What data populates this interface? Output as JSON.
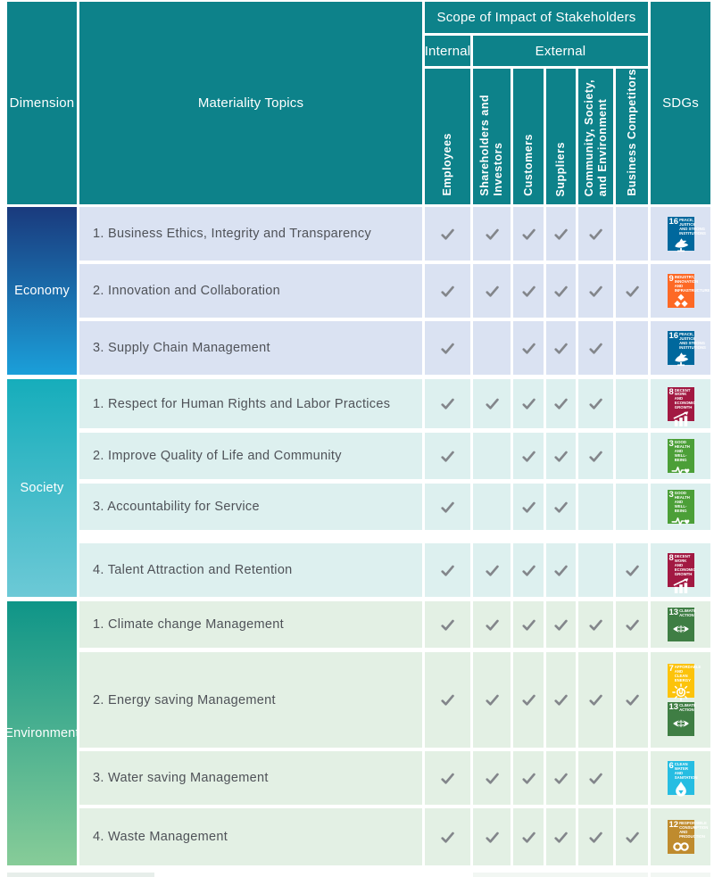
{
  "header": {
    "dimension": "Dimension",
    "materiality_topics": "Materiality Topics",
    "scope_title": "Scope of Impact of Stakeholders",
    "internal": "Internal",
    "external": "External",
    "stakeholders": [
      "Employees",
      "Shareholders and\nInvestors",
      "Customers",
      "Suppliers",
      "Community, Society,\nand Environment",
      "Business Competitors"
    ],
    "sdgs": "SDGs"
  },
  "colors": {
    "header_teal": "#0d828a",
    "check_gray": "#83868b",
    "topic_text": "#4f5258"
  },
  "sdg_catalog": {
    "sdg3": {
      "number": "3",
      "label": "GOOD HEALTH\nAND WELL-BEING",
      "color": "#4C9F38",
      "glyph": "ekg-heart-icon"
    },
    "sdg6": {
      "number": "6",
      "label": "CLEAN WATER\nAND SANITATION",
      "color": "#26BDE2",
      "glyph": "water-drop-icon"
    },
    "sdg7": {
      "number": "7",
      "label": "AFFORDABLE AND\nCLEAN ENERGY",
      "color": "#FCC30B",
      "glyph": "sun-energy-icon"
    },
    "sdg8": {
      "number": "8",
      "label": "DECENT WORK AND\nECONOMIC GROWTH",
      "color": "#A21942",
      "glyph": "growth-chart-icon"
    },
    "sdg9": {
      "number": "9",
      "label": "INDUSTRY, INNOVATION\nAND INFRASTRUCTURE",
      "color": "#FD6925",
      "glyph": "cubes-icon"
    },
    "sdg12": {
      "number": "12",
      "label": "RESPONSIBLE\nCONSUMPTION\nAND PRODUCTION",
      "color": "#BF8B2E",
      "glyph": "infinity-icon"
    },
    "sdg13": {
      "number": "13",
      "label": "CLIMATE\nACTION",
      "color": "#3F7E44",
      "glyph": "eye-globe-icon"
    },
    "sdg16": {
      "number": "16",
      "label": "PEACE, JUSTICE\nAND STRONG\nINSTITUTIONS",
      "color": "#00689D",
      "glyph": "dove-icon"
    }
  },
  "groups": [
    {
      "dimension": "Economy",
      "gradient": [
        "#1a3a7d",
        "#1b9fd9"
      ],
      "row_bg": "#dae2f2",
      "rows": [
        {
          "topic": "1. Business Ethics, Integrity and Transparency",
          "checks": [
            1,
            1,
            1,
            1,
            1,
            0
          ],
          "sdgs": [
            "sdg16"
          ]
        },
        {
          "topic": "2. Innovation and Collaboration",
          "checks": [
            1,
            1,
            1,
            1,
            1,
            1
          ],
          "sdgs": [
            "sdg9"
          ]
        },
        {
          "topic": "3. Supply Chain Management",
          "checks": [
            1,
            0,
            1,
            1,
            1,
            0
          ],
          "sdgs": [
            "sdg16"
          ]
        }
      ]
    },
    {
      "dimension": "Society",
      "gradient": [
        "#16adbb",
        "#6cc9d6"
      ],
      "row_bg": "#ddf0ef",
      "rows": [
        {
          "topic": "1. Respect for Human Rights and Labor Practices",
          "checks": [
            1,
            1,
            1,
            1,
            1,
            0
          ],
          "sdgs": [
            "sdg8"
          ]
        },
        {
          "topic": "2. Improve Quality of Life and Community",
          "checks": [
            1,
            0,
            1,
            1,
            1,
            0
          ],
          "sdgs": [
            "sdg3"
          ]
        },
        {
          "topic": "3. Accountability for Service",
          "checks": [
            1,
            0,
            1,
            1,
            0,
            0
          ],
          "sdgs": [
            "sdg3"
          ]
        },
        {
          "topic": "4. Talent Attraction and Retention",
          "checks": [
            1,
            1,
            1,
            1,
            0,
            1
          ],
          "sdgs": [
            "sdg8"
          ]
        }
      ]
    },
    {
      "dimension": "Environment",
      "gradient": [
        "#0f9588",
        "#87cc98"
      ],
      "row_bg": "#e3f0e4",
      "rows": [
        {
          "topic": "1. Climate change Management",
          "checks": [
            1,
            1,
            1,
            1,
            1,
            1
          ],
          "sdgs": [
            "sdg13"
          ]
        },
        {
          "topic": "2. Energy saving Management",
          "checks": [
            1,
            1,
            1,
            1,
            1,
            1
          ],
          "sdgs": [
            "sdg7",
            "sdg13"
          ]
        },
        {
          "topic": "3. Water saving Management",
          "checks": [
            1,
            1,
            1,
            1,
            1,
            0
          ],
          "sdgs": [
            "sdg6"
          ]
        },
        {
          "topic": "4. Waste Management",
          "checks": [
            1,
            1,
            1,
            1,
            1,
            1
          ],
          "sdgs": [
            "sdg12"
          ]
        }
      ]
    }
  ]
}
